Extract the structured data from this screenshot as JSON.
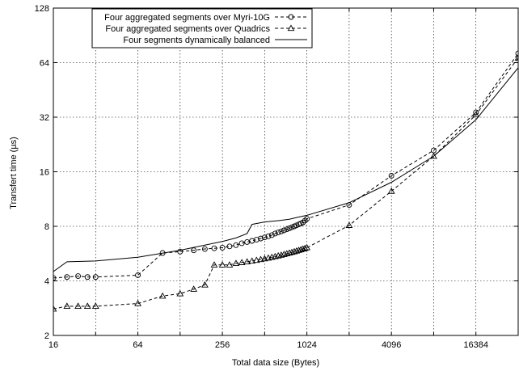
{
  "chart_data": {
    "type": "line",
    "xlabel": "Total data size (Bytes)",
    "ylabel": "Transfert time (µs)",
    "xscale": "log2",
    "yscale": "log2",
    "xlim": [
      16,
      32768
    ],
    "ylim": [
      2,
      128
    ],
    "xticks": [
      16,
      64,
      256,
      1024,
      4096,
      16384
    ],
    "xtick_labels": [
      "16",
      "64",
      "256",
      "1024",
      "4096",
      "16384"
    ],
    "yticks": [
      2,
      4,
      8,
      16,
      32,
      64,
      128
    ],
    "ytick_labels": [
      "2",
      "4",
      "8",
      "16",
      "32",
      "64",
      "128"
    ],
    "grid": true,
    "legend_position": "top-center",
    "series": [
      {
        "name": "Four aggregated segments over Myri-10G",
        "style": "dashed",
        "marker": "circle",
        "x": [
          16,
          20,
          24,
          28,
          32,
          64,
          96,
          128,
          160,
          192,
          224,
          256,
          288,
          320,
          352,
          384,
          416,
          448,
          480,
          512,
          544,
          576,
          608,
          640,
          672,
          704,
          736,
          768,
          800,
          832,
          864,
          896,
          928,
          960,
          992,
          1024,
          2048,
          4096,
          8192,
          16384,
          32768
        ],
        "y": [
          4.15,
          4.2,
          4.25,
          4.2,
          4.2,
          4.3,
          5.7,
          5.8,
          5.9,
          6.0,
          6.05,
          6.1,
          6.2,
          6.3,
          6.45,
          6.55,
          6.65,
          6.75,
          6.85,
          6.95,
          7.05,
          7.15,
          7.3,
          7.4,
          7.5,
          7.6,
          7.7,
          7.8,
          7.9,
          8.0,
          8.1,
          8.2,
          8.3,
          8.4,
          8.6,
          8.8,
          10.5,
          15.2,
          21.0,
          34.0,
          72.0
        ]
      },
      {
        "name": "Four aggregated segments over Quadrics",
        "style": "dashed",
        "marker": "triangle",
        "x": [
          16,
          20,
          24,
          28,
          32,
          64,
          96,
          128,
          160,
          192,
          224,
          256,
          288,
          320,
          352,
          384,
          416,
          448,
          480,
          512,
          544,
          576,
          608,
          640,
          672,
          704,
          736,
          768,
          800,
          832,
          864,
          896,
          928,
          960,
          992,
          1024,
          2048,
          4096,
          8192,
          16384,
          32768
        ],
        "y": [
          2.8,
          2.9,
          2.9,
          2.9,
          2.9,
          3.0,
          3.3,
          3.4,
          3.6,
          3.8,
          4.9,
          4.9,
          4.9,
          5.0,
          5.05,
          5.1,
          5.15,
          5.2,
          5.25,
          5.3,
          5.35,
          5.4,
          5.45,
          5.5,
          5.55,
          5.6,
          5.65,
          5.7,
          5.75,
          5.8,
          5.85,
          5.9,
          5.95,
          6.0,
          6.05,
          6.1,
          8.1,
          12.5,
          19.5,
          33.0,
          68.0
        ]
      },
      {
        "name": "Four segments dynamically balanced",
        "style": "solid",
        "marker": "none",
        "x": [
          16,
          20,
          32,
          64,
          128,
          192,
          256,
          320,
          384,
          416,
          512,
          640,
          768,
          896,
          1024,
          2048,
          4096,
          8192,
          16384,
          32768
        ],
        "y": [
          4.5,
          5.1,
          5.15,
          5.4,
          5.9,
          6.3,
          6.6,
          6.9,
          7.3,
          8.2,
          8.45,
          8.6,
          8.75,
          9.0,
          9.2,
          10.8,
          14.0,
          19.5,
          31.0,
          60.0
        ]
      }
    ]
  }
}
